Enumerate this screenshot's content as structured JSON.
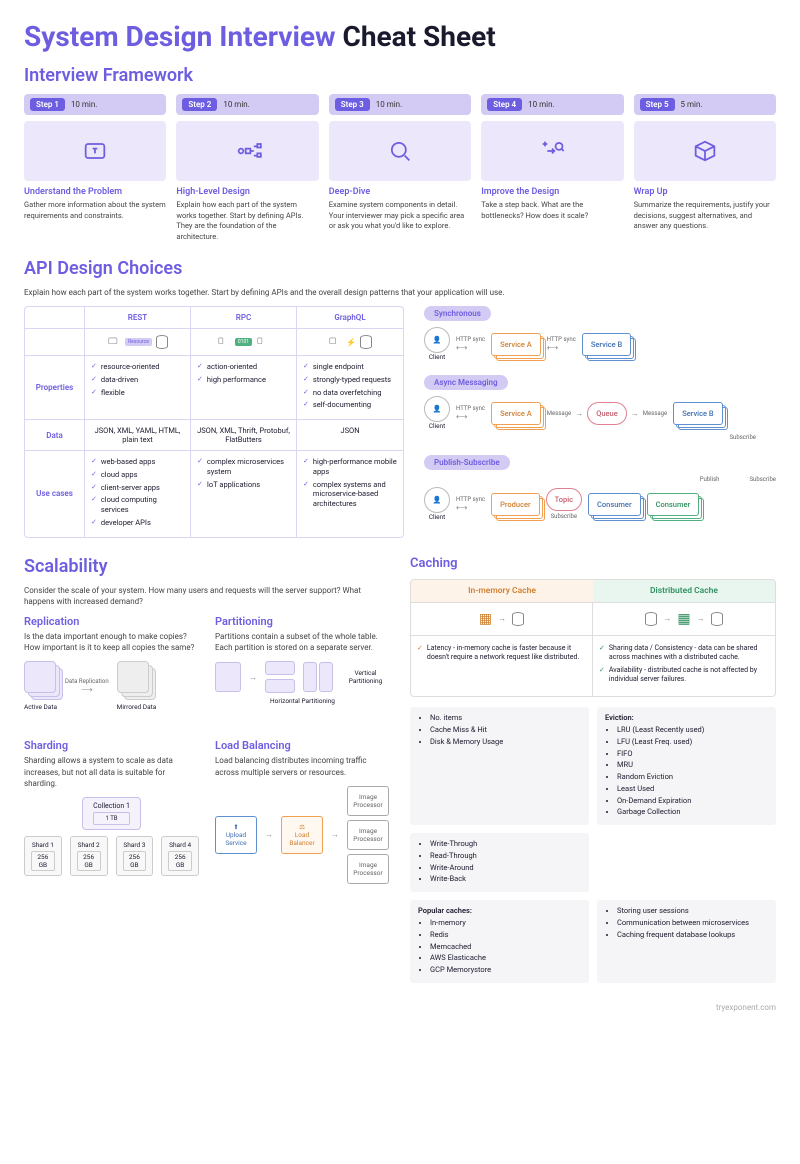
{
  "title_a": "System Design Interview ",
  "title_b": "Cheat Sheet",
  "h_framework": "Interview Framework",
  "steps": [
    {
      "badge": "Step 1",
      "time": "10 min.",
      "title": "Understand the Problem",
      "desc": "Gather more information about the system requirements and constraints."
    },
    {
      "badge": "Step 2",
      "time": "10 min.",
      "title": "High-Level Design",
      "desc": "Explain how each part of the system works together. Start by defining APIs. They are the foundation of the architecture."
    },
    {
      "badge": "Step 3",
      "time": "10 min.",
      "title": "Deep-Dive",
      "desc": "Examine system components in detail. Your interviewer may pick a specific area or ask you what you'd like to explore."
    },
    {
      "badge": "Step 4",
      "time": "10 min.",
      "title": "Improve the Design",
      "desc": "Take a step back. What are the bottlenecks? How does it scale?"
    },
    {
      "badge": "Step 5",
      "time": "5 min.",
      "title": "Wrap Up",
      "desc": "Summarize the requirements, justify your decisions, suggest alternatives, and answer any questions."
    }
  ],
  "h_api": "API Design Choices",
  "api_sub": "Explain how each part of the system works together. Start by defining APIs and the overall design patterns that your application will use.",
  "api_cols": [
    "REST",
    "RPC",
    "GraphQL"
  ],
  "api_rows": {
    "properties": {
      "label": "Properties",
      "rest": [
        "resource-oriented",
        "data-driven",
        "flexible"
      ],
      "rpc": [
        "action-oriented",
        "high performance"
      ],
      "gql": [
        "single endpoint",
        "strongly-typed requests",
        "no data overfetching",
        "self-documenting"
      ]
    },
    "data": {
      "label": "Data",
      "rest": "JSON, XML, YAML, HTML, plain text",
      "rpc": "JSON, XML, Thrift, Protobuf, FlatButters",
      "gql": "JSON"
    },
    "use": {
      "label": "Use cases",
      "rest": [
        "web-based apps",
        "cloud apps",
        "client-server apps",
        "cloud computing services",
        "developer APIs"
      ],
      "rpc": [
        "complex microservices system",
        "IoT applications"
      ],
      "gql": [
        "high-performance mobile apps",
        "complex systems and microservice-based architectures"
      ]
    }
  },
  "patterns": {
    "sync": {
      "badge": "Synchronous",
      "client": "Client",
      "a": "Service A",
      "b": "Service B",
      "l1": "HTTP sync",
      "l2": "HTTP sync"
    },
    "async": {
      "badge": "Async Messaging",
      "client": "Client",
      "a": "Service A",
      "q": "Queue",
      "b": "Service B",
      "l1": "HTTP sync",
      "l2": "Message",
      "l3": "Message",
      "l4": "Subscribe"
    },
    "pubsub": {
      "badge": "Publish-Subscribe",
      "client": "Client",
      "p": "Producer",
      "t": "Topic",
      "c1": "Consumer",
      "c2": "Consumer",
      "l1": "HTTP sync",
      "l2": "Subscribe",
      "l3": "Publish",
      "l4": "Subscribe"
    }
  },
  "h_scal": "Scalability",
  "scal_sub": "Consider the scale of your system. How many users and requests will the server support? What happens with increased demand?",
  "rep": {
    "h": "Replication",
    "sub": "Is the data important enough to make copies? How important is it to keep all copies the same?",
    "lbl": "Data Replication",
    "a": "Active Data",
    "b": "Mirrored Data"
  },
  "part": {
    "h": "Partitioning",
    "sub": "Partitions contain a subset of the whole table. Each partition is stored on a separate server.",
    "hp": "Horizontal Partitioning",
    "vp": "Vertical Partitioning"
  },
  "shard": {
    "h": "Sharding",
    "sub": "Sharding allows a system to scale as data increases, but not all data is suitable for sharding.",
    "coll": "Collection 1",
    "size": "1 TB",
    "shards": [
      "Shard 1",
      "Shard 2",
      "Shard 3",
      "Shard 4"
    ],
    "ss": "256 GB"
  },
  "lb": {
    "h": "Load Balancing",
    "sub": "Load balancing distributes incoming traffic across multiple servers or resources.",
    "up": "Upload Service",
    "bal": "Load Balancer",
    "img": "Image Processor"
  },
  "h_cache": "Caching",
  "cache": {
    "h1": "In-memory Cache",
    "h2": "Distributed Cache",
    "p1": "Latency - in-memory cache is faster because it doesn't require a network request like distributed.",
    "p2a": "Sharing data / Consistency - data can be shared across machines with a distributed cache.",
    "p2b": "Availability - distributed cache is not affected by individual server failures."
  },
  "clists": [
    {
      "items": [
        "No. items",
        "Cache Miss & Hit",
        "Disk & Memory Usage"
      ]
    },
    {
      "title": "Eviction:",
      "items": [
        "LRU (Least Recently used)",
        "LFU (Least Freq. used)",
        "FIFO",
        "MRU",
        "Random Eviction",
        "Least Used",
        "On-Demand Expiration",
        "Garbage Collection"
      ]
    },
    {
      "items": [
        "Write-Through",
        "Read-Through",
        "Write-Around",
        "Write-Back"
      ]
    },
    {
      "title": "Popular caches:",
      "items": [
        "In-memory",
        "Redis",
        "Memcached",
        "AWS Elasticache",
        "GCP Memorystore"
      ]
    },
    {
      "items": [
        "Storing user sessions",
        "Communication between microservices",
        "Caching frequent database lookups"
      ]
    }
  ],
  "footer": "tryexponent.com"
}
